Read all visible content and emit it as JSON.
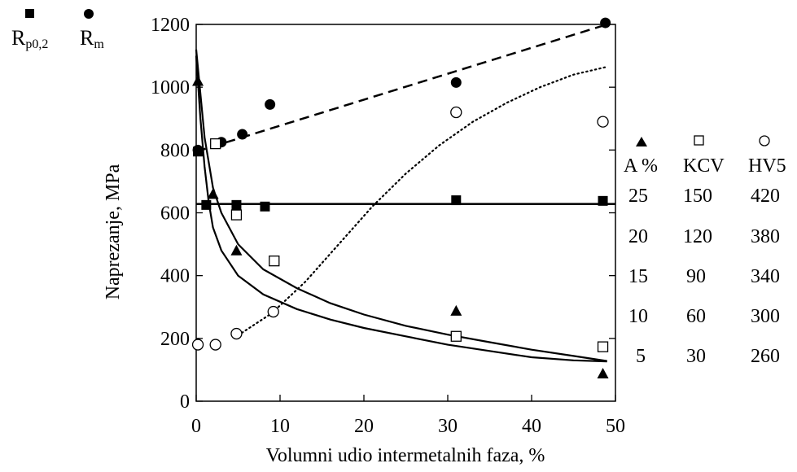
{
  "chart_data": {
    "type": "scatter",
    "xlabel": "Volumni udio intermetalnih faza, %",
    "ylabel": "Naprezanje, MPa",
    "xlim": [
      0,
      50
    ],
    "ylim": [
      0,
      1200
    ],
    "x_ticks": [
      "0",
      "10",
      "20",
      "30",
      "40",
      "50"
    ],
    "y_ticks": [
      "0",
      "200",
      "400",
      "600",
      "800",
      "1000",
      "1200"
    ],
    "grid": false,
    "legend_left": [
      {
        "symbol": "square-filled",
        "label_main": "R",
        "label_sub": "p0,2"
      },
      {
        "symbol": "circle-filled",
        "label_main": "R",
        "label_sub": "m"
      }
    ],
    "secondary_axes": {
      "headers": [
        {
          "symbol": "triangle-filled",
          "label": "A %"
        },
        {
          "symbol": "square-open",
          "label": "KCV"
        },
        {
          "symbol": "circle-open",
          "label": "HV5"
        }
      ],
      "rows": [
        {
          "A": "25",
          "KCV": "150",
          "HV5": "420"
        },
        {
          "A": "20",
          "KCV": "120",
          "HV5": "380"
        },
        {
          "A": "15",
          "KCV": "90",
          "HV5": "340"
        },
        {
          "A": "10",
          "KCV": "60",
          "HV5": "300"
        },
        {
          "A": "5",
          "KCV": "30",
          "HV5": "260"
        }
      ],
      "A_range": [
        0,
        30
      ],
      "KCV_range": [
        0,
        180
      ],
      "HV5_range": [
        220,
        460
      ]
    },
    "series": [
      {
        "key": "Rp02",
        "marker": "square-filled",
        "points": [
          [
            0.2,
            795
          ],
          [
            1.2,
            625
          ],
          [
            4.8,
            625
          ],
          [
            8.2,
            620
          ],
          [
            31,
            640
          ],
          [
            48.5,
            638
          ]
        ]
      },
      {
        "key": "Rm",
        "marker": "circle-filled",
        "points": [
          [
            0.2,
            800
          ],
          [
            3,
            825
          ],
          [
            5.5,
            850
          ],
          [
            8.8,
            945
          ],
          [
            31,
            1015
          ],
          [
            48.8,
            1205
          ]
        ]
      },
      {
        "key": "A",
        "marker": "triangle-filled",
        "points": [
          [
            0.2,
            25.5
          ],
          [
            2,
            16.5
          ],
          [
            4.8,
            12
          ],
          [
            31,
            7.2
          ],
          [
            48.5,
            2.2
          ]
        ]
      },
      {
        "key": "KCV",
        "marker": "square-open",
        "points": [
          [
            2.3,
            123
          ],
          [
            4.8,
            89
          ],
          [
            9.3,
            67
          ],
          [
            31,
            31
          ],
          [
            48.5,
            26
          ]
        ]
      },
      {
        "key": "HV5",
        "marker": "circle-open",
        "points": [
          [
            0.2,
            256
          ],
          [
            2.3,
            256
          ],
          [
            4.8,
            263
          ],
          [
            9.2,
            277
          ],
          [
            31,
            404
          ],
          [
            48.5,
            398
          ]
        ]
      }
    ],
    "fit_lines": [
      {
        "key": "Rm_fit",
        "style": "dashed",
        "points": [
          [
            0,
            795
          ],
          [
            49,
            1200
          ]
        ]
      },
      {
        "key": "Rp02_fit",
        "style": "solid",
        "points": [
          [
            0,
            628
          ],
          [
            50,
            628
          ]
        ]
      },
      {
        "key": "A_fit",
        "style": "solid",
        "points": [
          [
            0,
            28
          ],
          [
            1,
            21
          ],
          [
            2,
            17
          ],
          [
            3,
            15
          ],
          [
            5,
            12.5
          ],
          [
            8,
            10.5
          ],
          [
            12,
            9
          ],
          [
            16,
            7.8
          ],
          [
            20,
            6.9
          ],
          [
            25,
            6
          ],
          [
            30,
            5.3
          ],
          [
            35,
            4.7
          ],
          [
            40,
            4.1
          ],
          [
            45,
            3.6
          ],
          [
            49,
            3.2
          ]
        ]
      },
      {
        "key": "KCV_fit",
        "style": "solid",
        "points": [
          [
            0,
            165
          ],
          [
            0.5,
            135
          ],
          [
            1,
            112
          ],
          [
            1.5,
            95
          ],
          [
            2,
            83
          ],
          [
            3,
            72
          ],
          [
            5,
            60
          ],
          [
            8,
            51
          ],
          [
            12,
            44
          ],
          [
            16,
            39
          ],
          [
            20,
            35
          ],
          [
            25,
            31
          ],
          [
            30,
            27
          ],
          [
            35,
            24
          ],
          [
            40,
            21
          ],
          [
            45,
            19.5
          ],
          [
            49,
            19
          ]
        ]
      },
      {
        "key": "HV5_fit",
        "style": "dotted",
        "points": [
          [
            5,
            262
          ],
          [
            9,
            276
          ],
          [
            13,
            296
          ],
          [
            17,
            320
          ],
          [
            21,
            344
          ],
          [
            25,
            365
          ],
          [
            29,
            383
          ],
          [
            33,
            398
          ],
          [
            37,
            410
          ],
          [
            41,
            420
          ],
          [
            45,
            428
          ],
          [
            49,
            433
          ]
        ]
      }
    ]
  }
}
